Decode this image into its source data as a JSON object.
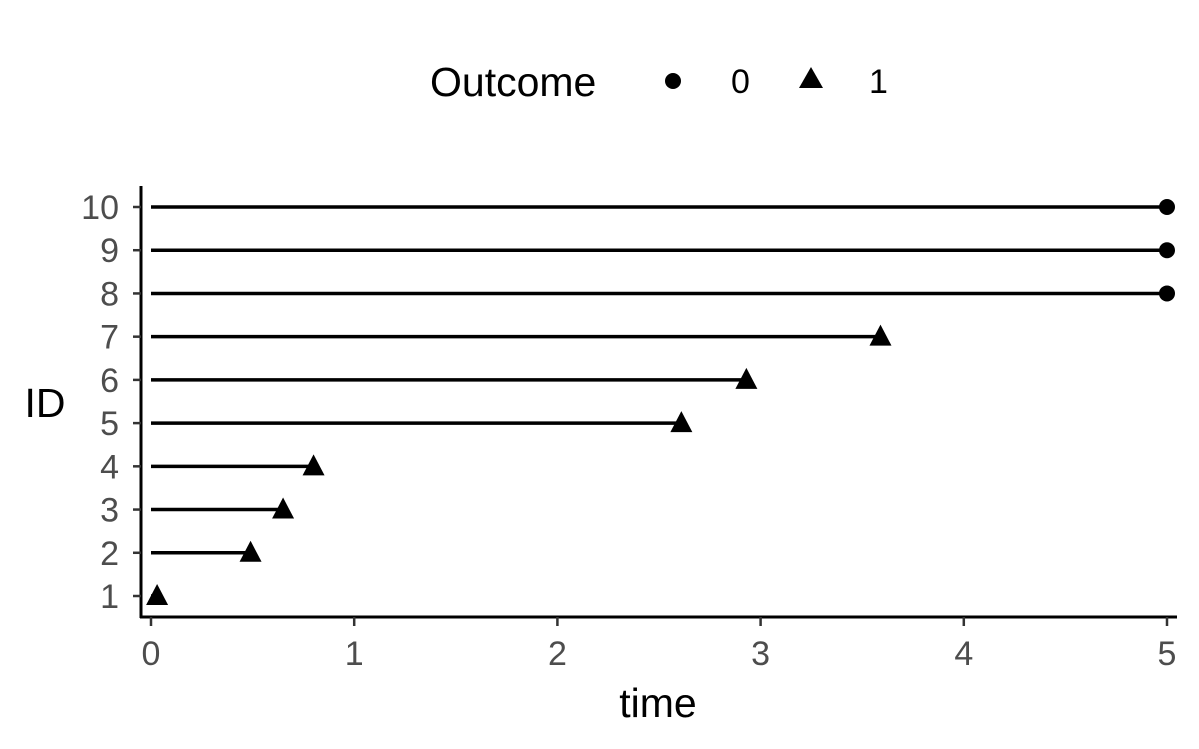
{
  "chart_data": {
    "type": "scatter",
    "variant": "swimmer-plot",
    "xlabel": "time",
    "ylabel": "ID",
    "xlim": [
      0,
      5
    ],
    "ylim": [
      1,
      10
    ],
    "x_ticks": [
      "0",
      "1",
      "2",
      "3",
      "4",
      "5"
    ],
    "y_ticks": [
      "1",
      "2",
      "3",
      "4",
      "5",
      "6",
      "7",
      "8",
      "9",
      "10"
    ],
    "grid": false,
    "legend": {
      "title": "Outcome",
      "position": "top",
      "entries": [
        {
          "label": "0",
          "shape": "circle"
        },
        {
          "label": "1",
          "shape": "triangle"
        }
      ]
    },
    "records": [
      {
        "id": 1,
        "time": 0.03,
        "outcome": 1
      },
      {
        "id": 2,
        "time": 0.49,
        "outcome": 1
      },
      {
        "id": 3,
        "time": 0.65,
        "outcome": 1
      },
      {
        "id": 4,
        "time": 0.8,
        "outcome": 1
      },
      {
        "id": 5,
        "time": 2.61,
        "outcome": 1
      },
      {
        "id": 6,
        "time": 2.93,
        "outcome": 1
      },
      {
        "id": 7,
        "time": 3.59,
        "outcome": 1
      },
      {
        "id": 8,
        "time": 5.0,
        "outcome": 0
      },
      {
        "id": 9,
        "time": 5.0,
        "outcome": 0
      },
      {
        "id": 10,
        "time": 5.0,
        "outcome": 0
      }
    ],
    "colors": {
      "marks": "#000000",
      "tick_labels": "#4d4d4d",
      "axis": "#000000"
    }
  }
}
